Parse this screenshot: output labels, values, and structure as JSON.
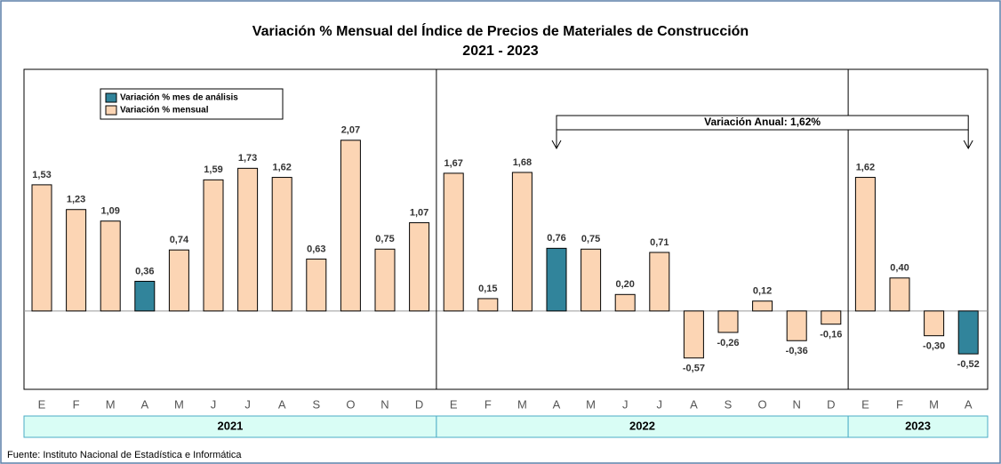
{
  "chart_data": {
    "type": "bar",
    "title": "Variación % Mensual del Índice de Precios de Materiales de Construcción",
    "subtitle": "2021 - 2023",
    "categories": [
      "E",
      "F",
      "M",
      "A",
      "M",
      "J",
      "J",
      "A",
      "S",
      "O",
      "N",
      "D",
      "E",
      "F",
      "M",
      "A",
      "M",
      "J",
      "J",
      "A",
      "S",
      "O",
      "N",
      "D",
      "E",
      "F",
      "M",
      "A"
    ],
    "x_groups": [
      {
        "label": "2021",
        "size": 12
      },
      {
        "label": "2022",
        "size": 12
      },
      {
        "label": "2023",
        "size": 4
      }
    ],
    "series": [
      {
        "name": "Variación % mes de análisis",
        "color": "#31849b",
        "values": [
          null,
          null,
          null,
          0.36,
          null,
          null,
          null,
          null,
          null,
          null,
          null,
          null,
          null,
          null,
          null,
          0.76,
          null,
          null,
          null,
          null,
          null,
          null,
          null,
          null,
          null,
          null,
          null,
          -0.52
        ],
        "value_labels": [
          null,
          null,
          null,
          "0,36",
          null,
          null,
          null,
          null,
          null,
          null,
          null,
          null,
          null,
          null,
          null,
          "0,76",
          null,
          null,
          null,
          null,
          null,
          null,
          null,
          null,
          null,
          null,
          null,
          "-0,52"
        ]
      },
      {
        "name": "Variación % mensual",
        "color": "#fcd5b4",
        "values": [
          1.53,
          1.23,
          1.09,
          null,
          0.74,
          1.59,
          1.73,
          1.62,
          0.63,
          2.07,
          0.75,
          1.07,
          1.67,
          0.15,
          1.68,
          null,
          0.75,
          0.2,
          0.71,
          -0.57,
          -0.26,
          0.12,
          -0.36,
          -0.16,
          1.62,
          0.4,
          -0.3,
          null
        ],
        "value_labels": [
          "1,53",
          "1,23",
          "1,09",
          null,
          "0,74",
          "1,59",
          "1,73",
          "1,62",
          "0,63",
          "2,07",
          "0,75",
          "1,07",
          "1,67",
          "0,15",
          "1,68",
          null,
          "0,75",
          "0,20",
          "0,71",
          "-0,57",
          "-0,26",
          "0,12",
          "-0,36",
          "-0,16",
          "1,62",
          "0,40",
          "-0,30",
          null
        ]
      }
    ],
    "ylim": [
      -0.95,
      2.93
    ],
    "annotation": "Variación Anual: 1,62%",
    "source": "Fuente: Instituto Nacional de Estadística e Informática"
  }
}
